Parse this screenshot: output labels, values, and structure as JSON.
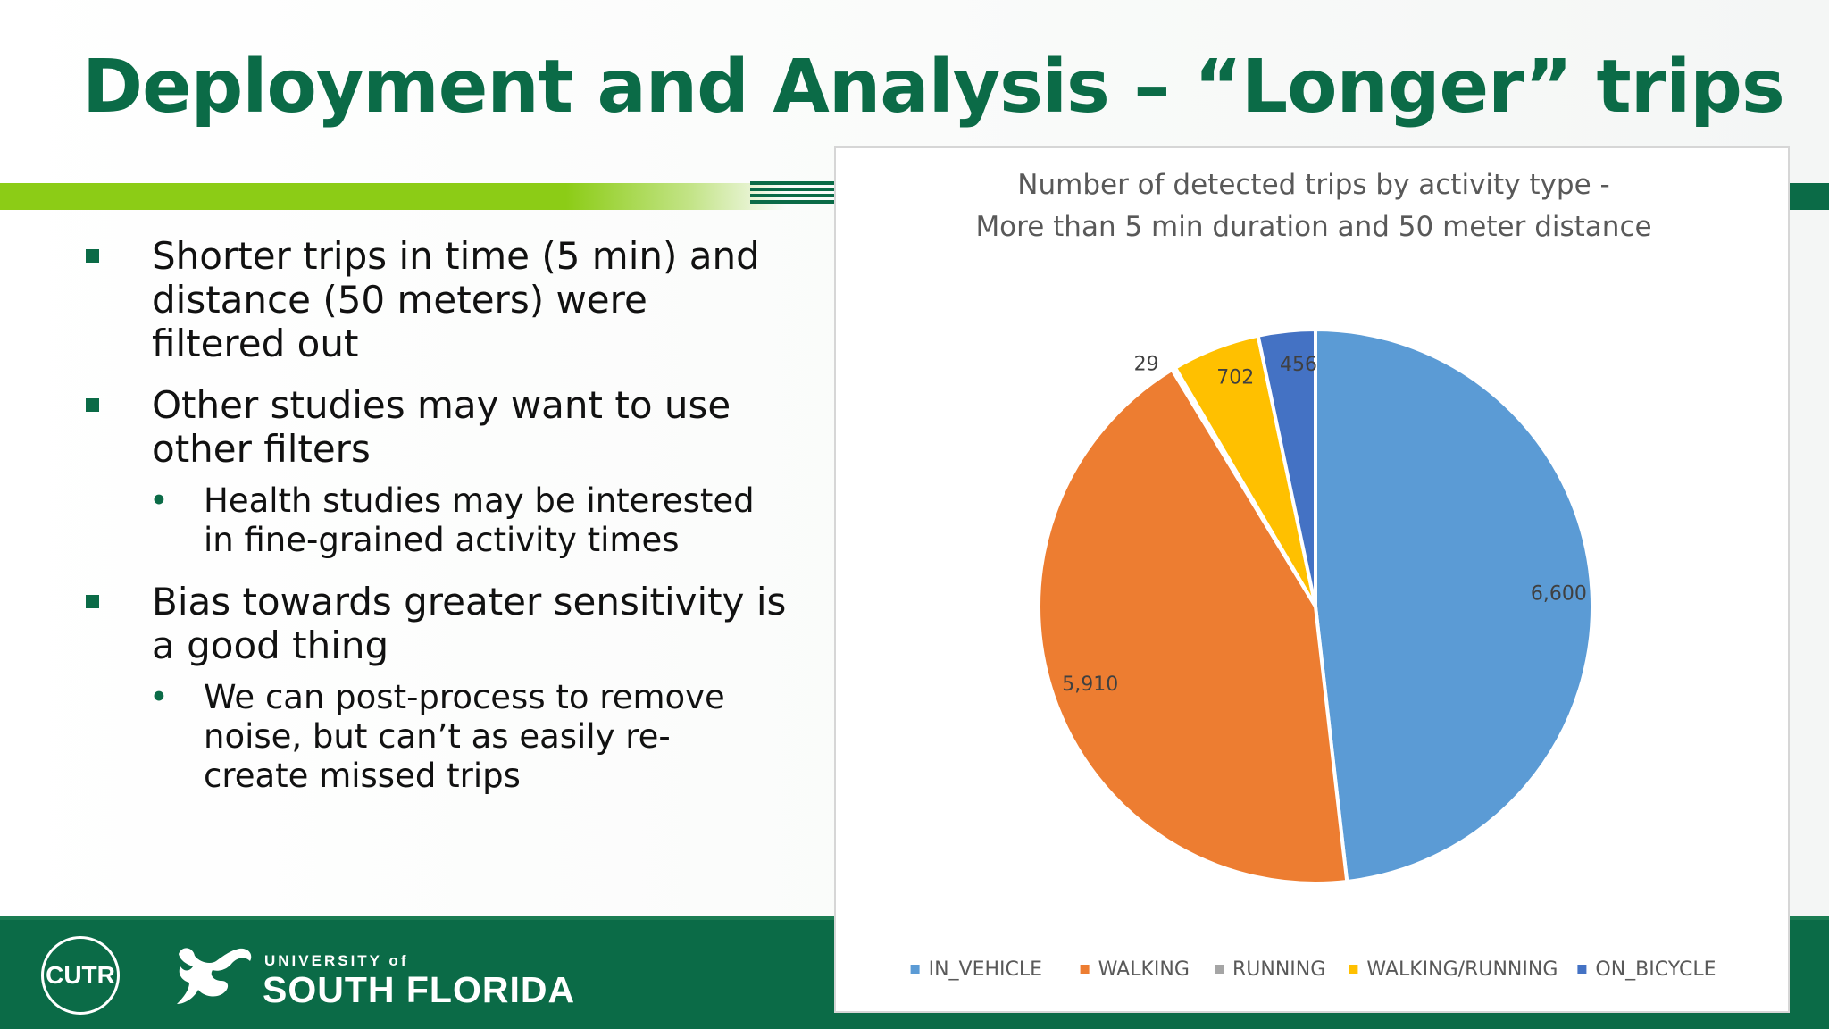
{
  "slide": {
    "title": "Deployment and Analysis – “Longer” trips",
    "bullets": [
      {
        "text": "Shorter trips in time (5 min) and distance (50 meters) were filtered out",
        "lines": [
          "Shorter trips in time (5 min) and",
          "distance (50 meters) were",
          "filtered out"
        ],
        "sub": []
      },
      {
        "text": "Other studies may want to use other filters",
        "lines": [
          "Other studies may want to use",
          "other filters"
        ],
        "sub": [
          {
            "lines": [
              "Health studies may be interested",
              "in fine-grained activity times"
            ]
          }
        ]
      },
      {
        "text": "Bias towards greater sensitivity is a good thing",
        "lines": [
          "Bias towards greater sensitivity is",
          "a good thing"
        ],
        "sub": [
          {
            "lines": [
              "We can post-process to remove",
              "noise, but can’t as easily re-",
              "create missed trips"
            ]
          }
        ]
      }
    ]
  },
  "footer": {
    "cutr_logo": "CUTR",
    "university_top": "UNIVERSITY of",
    "university_main": "SOUTH FLORIDA",
    "bull_icon": "usf-bull-icon"
  },
  "colors": {
    "title": "#0b6b47",
    "accent_lime": "#8ccc16",
    "footer": "#0b6b47"
  },
  "chart_data": {
    "type": "pie",
    "title_lines": [
      "Number of detected trips by activity type -",
      "More than 5 min duration and 50 meter distance"
    ],
    "categories": [
      "IN_VEHICLE",
      "WALKING",
      "RUNNING",
      "WALKING/RUNNING",
      "ON_BICYCLE"
    ],
    "values": [
      6600,
      5910,
      29,
      702,
      456
    ],
    "labels": [
      "6,600",
      "5,910",
      "29",
      "702",
      "456"
    ],
    "colors": [
      "#5b9bd5",
      "#ed7d31",
      "#a5a5a5",
      "#ffc000",
      "#4472c4"
    ],
    "start_angle_deg": 0,
    "direction": "clockwise",
    "legend": "bottom"
  }
}
